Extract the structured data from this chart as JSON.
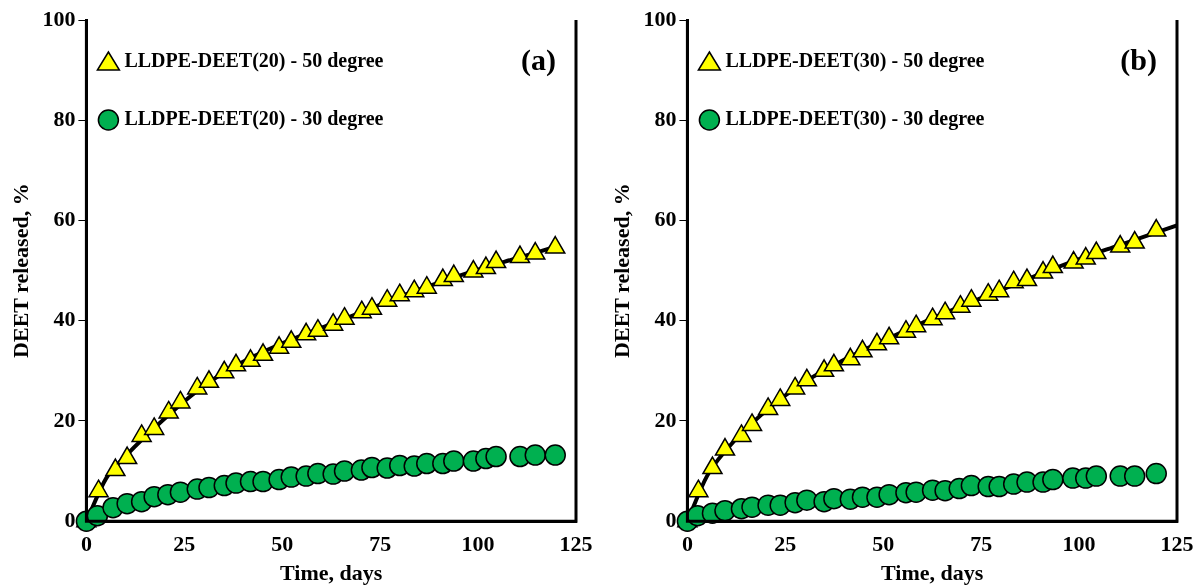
{
  "chart_data": [
    {
      "type": "scatter",
      "title": "(a)",
      "xlabel": "Time, days",
      "ylabel": "DEET released, %",
      "xlim": [
        0,
        125
      ],
      "xticks": [
        0,
        25,
        50,
        75,
        100,
        125
      ],
      "ylim": [
        0,
        100
      ],
      "yticks": [
        0,
        20,
        40,
        60,
        80,
        100
      ],
      "grid": false,
      "legend": "top left",
      "series": [
        {
          "type": "line",
          "color": "#000000",
          "marker": "none",
          "line_style": "solid",
          "x": [
            0,
            5,
            10,
            20,
            30,
            40,
            50,
            60,
            70,
            80,
            90,
            100,
            110,
            120
          ],
          "values": [
            0,
            8.5,
            13,
            20.5,
            27,
            31.8,
            35.5,
            38.6,
            41.6,
            44.8,
            47.6,
            50.2,
            52.5,
            54.8
          ]
        },
        {
          "name": "LLDPE-DEET(20) - 50 degree",
          "color": "#ffff00",
          "marker": "triangle",
          "x": [
            0,
            3.1,
            7.4,
            10.4,
            14.1,
            17.3,
            21,
            24,
            28.3,
            31.3,
            35.2,
            38.2,
            41.9,
            45.1,
            49.2,
            52.3,
            56.1,
            59.1,
            63,
            65.9,
            70.3,
            72.9,
            76.8,
            80,
            83.7,
            86.9,
            91,
            93.8,
            98.8,
            102,
            104.6,
            110.7,
            114.6,
            119.7
          ],
          "values": [
            0,
            6,
            10.2,
            12.6,
            17,
            18.4,
            21.7,
            23.7,
            26.5,
            27.8,
            29.7,
            31.1,
            32,
            33.2,
            34.6,
            35.8,
            37.3,
            38,
            39.2,
            40.4,
            41.7,
            42.4,
            44,
            45.1,
            45.9,
            46.6,
            48.1,
            48.9,
            49.8,
            50.5,
            51.7,
            52.7,
            53.4,
            54.6
          ]
        },
        {
          "name": "LLDPE-DEET(20) - 30 degree",
          "color": "#00b050",
          "marker": "circle",
          "x": [
            0,
            2.8,
            6.8,
            10.4,
            14.1,
            17.3,
            20.8,
            24,
            28.3,
            31.3,
            35.2,
            38.2,
            41.9,
            45.1,
            49.2,
            52.3,
            56.1,
            59.1,
            63,
            65.9,
            70.2,
            72.9,
            76.8,
            80,
            83.7,
            86.9,
            91,
            93.8,
            98.8,
            102,
            104.6,
            110.7,
            114.6,
            119.7
          ],
          "values": [
            0,
            1.1,
            2.7,
            3.5,
            3.9,
            4.9,
            5.3,
            5.8,
            6.4,
            6.7,
            7.1,
            7.6,
            7.9,
            7.9,
            8.3,
            8.8,
            9,
            9.5,
            9.4,
            10,
            10.2,
            10.7,
            10.6,
            11.1,
            11,
            11.5,
            11.5,
            12,
            12,
            12.5,
            12.9,
            12.9,
            13.2,
            13.2
          ]
        }
      ]
    },
    {
      "type": "scatter",
      "title": "(b)",
      "xlabel": "Time, days",
      "ylabel": "DEET released, %",
      "xlim": [
        0,
        125
      ],
      "xticks": [
        0,
        25,
        50,
        75,
        100,
        125
      ],
      "ylim": [
        0,
        100
      ],
      "yticks": [
        0,
        20,
        40,
        60,
        80,
        100
      ],
      "grid": false,
      "legend": "top left",
      "series": [
        {
          "type": "line",
          "color": "#000000",
          "marker": "none",
          "line_style": "solid",
          "x": [
            0,
            5,
            10,
            20,
            30,
            40,
            50,
            60,
            70,
            80,
            90,
            100,
            110,
            125
          ],
          "values": [
            0,
            9,
            14.3,
            22,
            27.8,
            32.2,
            36,
            39.6,
            42.9,
            46.1,
            49.3,
            52.3,
            55,
            59
          ]
        },
        {
          "name": "LLDPE-DEET(30) - 50 degree",
          "color": "#ffff00",
          "marker": "triangle",
          "x": [
            0,
            2.8,
            6.4,
            9.6,
            13.8,
            16.5,
            20.6,
            23.7,
            27.5,
            30.5,
            34.9,
            37.4,
            41.6,
            44.7,
            48.4,
            51.5,
            55.8,
            58.4,
            62.6,
            65.8,
            69.7,
            72.5,
            76.8,
            79.6,
            83.3,
            86.7,
            90.8,
            93.3,
            98.6,
            101.7,
            104.4,
            110.5,
            114.2,
            119.7
          ],
          "values": [
            0,
            6,
            10.6,
            14.3,
            17,
            19.2,
            22.4,
            24.2,
            26.5,
            28.1,
            30,
            31.1,
            32.3,
            33.9,
            35.3,
            36.5,
            37.8,
            38.9,
            40.3,
            41.5,
            42.8,
            44,
            45.2,
            45.9,
            47.7,
            48.1,
            49.6,
            50.7,
            51.6,
            52.4,
            53.5,
            54.8,
            55.6,
            58
          ]
        },
        {
          "name": "LLDPE-DEET(30) - 30 degree",
          "color": "#00b050",
          "marker": "circle",
          "x": [
            0,
            2.6,
            6.4,
            9.6,
            13.8,
            16.5,
            20.6,
            23.7,
            27.5,
            30.5,
            34.9,
            37.4,
            41.6,
            44.7,
            48.4,
            51.5,
            55.8,
            58.4,
            62.6,
            65.8,
            69.4,
            72.5,
            76.8,
            79.6,
            83.3,
            86.7,
            90.8,
            93.3,
            98.4,
            101.7,
            104.4,
            110.5,
            114.2,
            119.7
          ],
          "values": [
            0,
            1.1,
            1.6,
            2.1,
            2.5,
            2.8,
            3.2,
            3.2,
            3.7,
            4.2,
            3.9,
            4.5,
            4.4,
            4.8,
            4.8,
            5.3,
            5.7,
            5.8,
            6.2,
            6.1,
            6.5,
            7.1,
            6.9,
            6.9,
            7.4,
            7.8,
            7.8,
            8.3,
            8.6,
            8.6,
            9,
            9,
            9,
            9.5
          ]
        }
      ]
    }
  ]
}
